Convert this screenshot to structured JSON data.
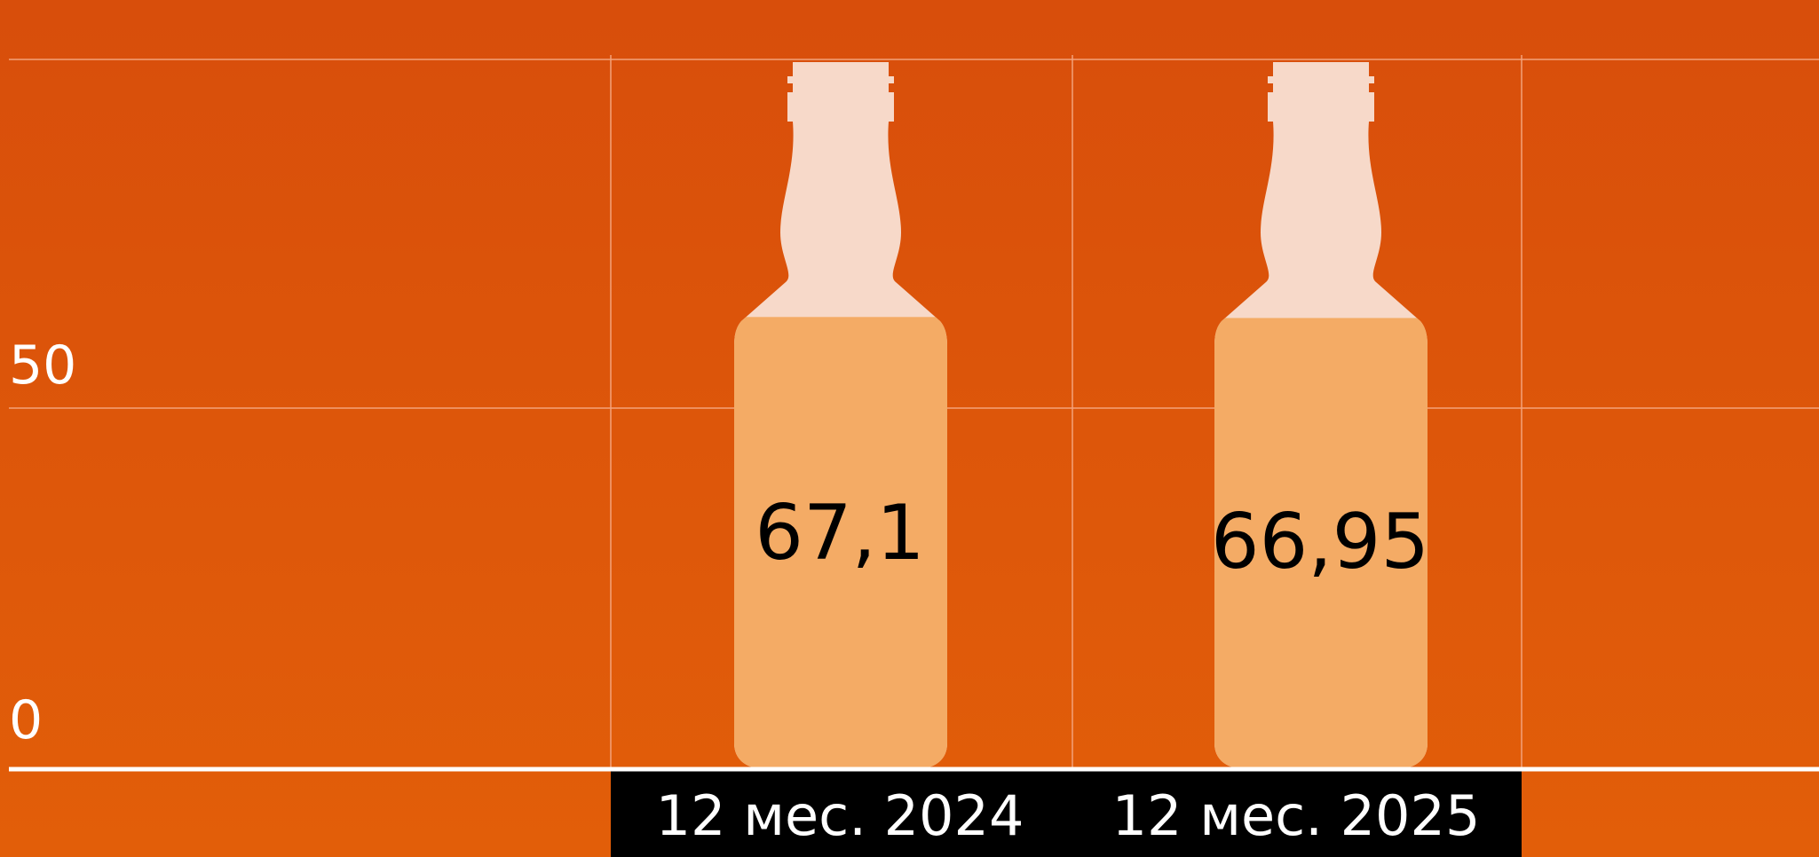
{
  "chart_data": {
    "type": "bar",
    "title": "",
    "xlabel": "",
    "ylabel": "",
    "categories": [
      "12 мес. 2024",
      "12 мес. 2025"
    ],
    "values": [
      67.1,
      66.95
    ],
    "value_labels": [
      "67,1",
      "66,95"
    ],
    "ylim": [
      0,
      105
    ],
    "yticks": [
      0,
      50
    ],
    "ytick_labels": [
      "0",
      "50"
    ],
    "grid": true,
    "legend": "none"
  },
  "colors": {
    "background_top": "#d84e0b",
    "background_bottom": "#e25e09",
    "bottle_fill": "#f4ab65",
    "bottle_empty": "#f7d9c9",
    "category_band": "#000000",
    "grid": "#f3a27a",
    "axis": "#ffffff"
  }
}
